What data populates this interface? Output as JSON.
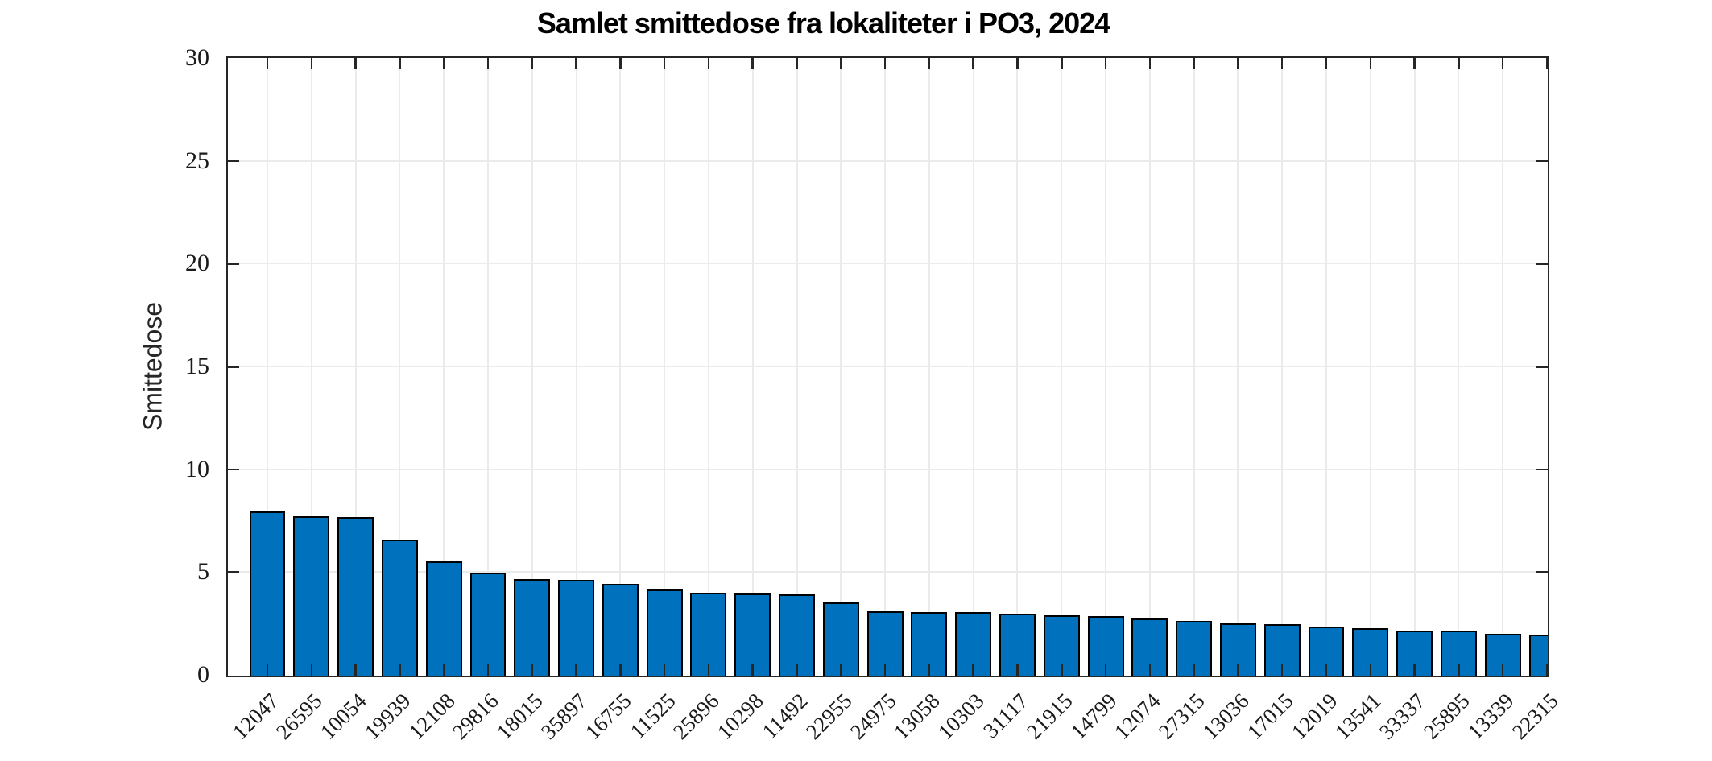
{
  "chart_data": {
    "type": "bar",
    "title": "Samlet smittedose fra lokaliteter i PO3, 2024",
    "xlabel": "",
    "ylabel": "Smittedose",
    "categories": [
      "12047",
      "26595",
      "10054",
      "19939",
      "12108",
      "29816",
      "18015",
      "35897",
      "16755",
      "11525",
      "25896",
      "10298",
      "11492",
      "22955",
      "24975",
      "13058",
      "10303",
      "31117",
      "21915",
      "14799",
      "12074",
      "27315",
      "13036",
      "17015",
      "12019",
      "13541",
      "33337",
      "25895",
      "13339",
      "22315"
    ],
    "values": [
      8.0,
      7.75,
      7.7,
      6.6,
      5.55,
      5.0,
      4.7,
      4.65,
      4.45,
      4.2,
      4.05,
      4.0,
      3.95,
      3.55,
      3.15,
      3.1,
      3.1,
      3.0,
      2.95,
      2.9,
      2.8,
      2.65,
      2.55,
      2.5,
      2.4,
      2.3,
      2.2,
      2.2,
      2.05,
      2.0
    ],
    "ylim": [
      0,
      30
    ],
    "yticks": [
      0,
      5,
      10,
      15,
      20,
      25,
      30
    ],
    "xtick_rotation_deg": 45,
    "grid": true,
    "legend": "none",
    "bar_color": "#0072BD",
    "bar_edge_color": "#000000",
    "axis_color": "#262626",
    "grid_color": "#ebebeb",
    "last_bar_clipped_at_right_axis": true
  }
}
